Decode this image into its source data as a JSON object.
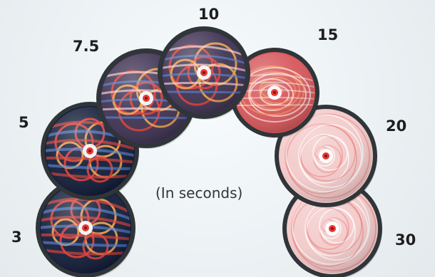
{
  "labels": {
    "t3": "3",
    "t5": "5",
    "t7_5": "7.5",
    "t10": "10",
    "t15": "15",
    "t20": "20",
    "t30": "30"
  },
  "caption": "(In seconds)",
  "colors": {
    "background": "#edf2f5",
    "rim": "#2f3538",
    "red": "#e23a32",
    "orange": "#f3a247",
    "blue": "#4f7ed2",
    "navy": "#101a36",
    "pink": "#f3c9c9"
  },
  "discs": [
    {
      "time": "3",
      "palette": "dark"
    },
    {
      "time": "5",
      "palette": "dark"
    },
    {
      "time": "7.5",
      "palette": "mixed"
    },
    {
      "time": "10",
      "palette": "mixed"
    },
    {
      "time": "15",
      "palette": "warm"
    },
    {
      "time": "20",
      "palette": "light"
    },
    {
      "time": "30",
      "palette": "light"
    }
  ]
}
